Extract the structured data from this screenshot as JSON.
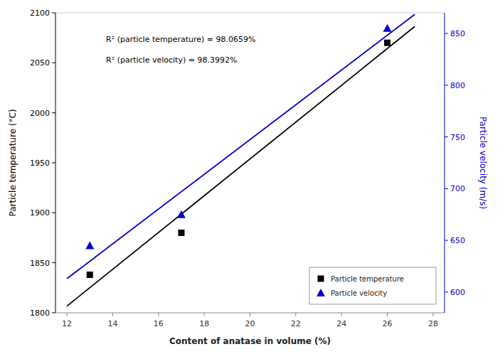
{
  "chart_data": {
    "type": "scatter",
    "xlabel": "Content of anatase in volume (%)",
    "ylabel": "Particle temperature (°C)",
    "y2label": "Particle velocity (m/s)",
    "xlim": [
      11.5,
      28.5
    ],
    "xticks": [
      12,
      14,
      16,
      18,
      20,
      22,
      24,
      26,
      28
    ],
    "ylim": [
      1800,
      2100
    ],
    "yticks": [
      1800,
      1850,
      1900,
      1950,
      2000,
      2050,
      2100
    ],
    "y2lim": [
      580,
      870
    ],
    "y2ticks": [
      600,
      650,
      700,
      750,
      800,
      850
    ],
    "grid": false,
    "legend": "lower right",
    "annotations": [
      "R² (particle temperature) = 98.0659%",
      "R² (particle velocity) = 98.3992%"
    ],
    "series": [
      {
        "name": "Particle temperature",
        "type": "scatter",
        "marker": "square",
        "color": "#000000",
        "axis": "y",
        "x": [
          13,
          17,
          26
        ],
        "values": [
          1838,
          1880,
          2070
        ]
      },
      {
        "name": "Particle velocity",
        "type": "scatter",
        "marker": "triangle",
        "color": "#0000CC",
        "axis": "y2",
        "x": [
          13,
          17,
          26
        ],
        "values": [
          645,
          675,
          855
        ]
      },
      {
        "type": "line",
        "line_style": "solid",
        "color": "#000000",
        "axis": "y",
        "x": [
          12.0,
          27.2
        ],
        "values": [
          1806.6767,
          2086.3338
        ]
      },
      {
        "type": "line",
        "line_style": "solid",
        "color": "#0000CC",
        "axis": "y2",
        "x": [
          12.0,
          27.2
        ],
        "values": [
          612.9699,
          868.3985
        ]
      }
    ]
  }
}
